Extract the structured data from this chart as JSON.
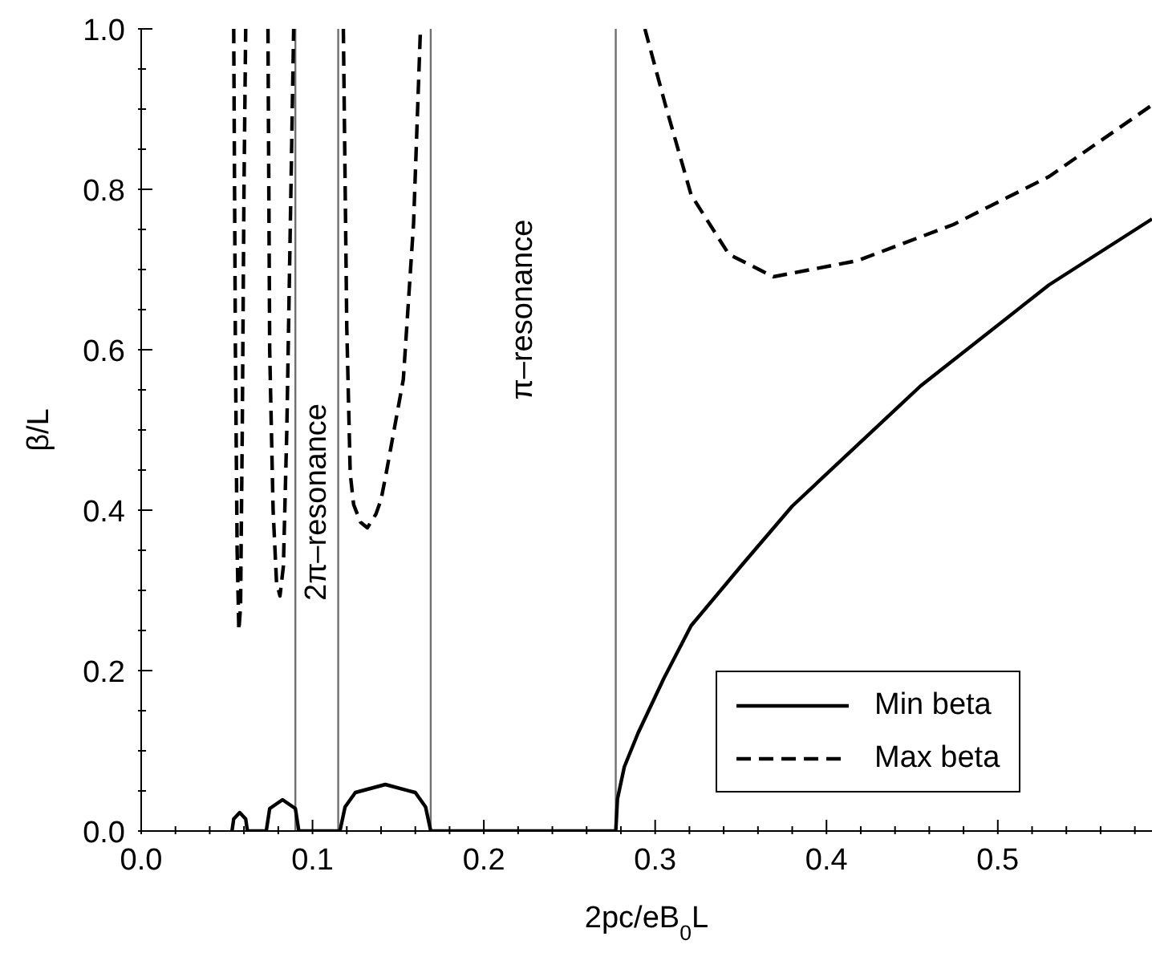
{
  "chart_data": {
    "type": "line",
    "xlabel": "2pc/eB$_{0}$L",
    "ylabel": "β/L",
    "xlim": [
      0,
      0.59
    ],
    "ylim": [
      0,
      1
    ],
    "xticks": [
      {
        "value": 0,
        "label": "0.0"
      },
      {
        "value": 0.02,
        "label": null
      },
      {
        "value": 0.04,
        "label": null
      },
      {
        "value": 0.06,
        "label": null
      },
      {
        "value": 0.08,
        "label": null
      },
      0.1,
      {
        "value": 0.12,
        "label": null
      },
      {
        "value": 0.14,
        "label": null
      },
      {
        "value": 0.16,
        "label": null
      },
      {
        "value": 0.18,
        "label": null
      },
      0.2,
      {
        "value": 0.22,
        "label": null
      },
      {
        "value": 0.24,
        "label": null
      },
      {
        "value": 0.26,
        "label": null
      },
      {
        "value": 0.28,
        "label": null
      },
      0.3,
      {
        "value": 0.32,
        "label": null
      },
      {
        "value": 0.34,
        "label": null
      },
      {
        "value": 0.36,
        "label": null
      },
      {
        "value": 0.38,
        "label": null
      },
      0.4,
      {
        "value": 0.42,
        "label": null
      },
      {
        "value": 0.44,
        "label": null
      },
      {
        "value": 0.46,
        "label": null
      },
      {
        "value": 0.48,
        "label": null
      },
      0.5,
      {
        "value": 0.52,
        "label": null
      },
      {
        "value": 0.54,
        "label": null
      },
      {
        "value": 0.56,
        "label": null
      },
      {
        "value": 0.58,
        "label": null
      }
    ],
    "yticks": [
      {
        "value": 0,
        "label": "0.0"
      },
      {
        "value": 0.05,
        "label": null
      },
      {
        "value": 0.1,
        "label": null
      },
      {
        "value": 0.15,
        "label": null
      },
      0.2,
      {
        "value": 0.25,
        "label": null
      },
      {
        "value": 0.3,
        "label": null
      },
      {
        "value": 0.35,
        "label": null
      },
      0.4,
      {
        "value": 0.45,
        "label": null
      },
      {
        "value": 0.5,
        "label": null
      },
      {
        "value": 0.55,
        "label": null
      },
      0.6,
      {
        "value": 0.65,
        "label": null
      },
      {
        "value": 0.7,
        "label": null
      },
      {
        "value": 0.75,
        "label": null
      },
      0.8,
      {
        "value": 0.85,
        "label": null
      },
      {
        "value": 0.9,
        "label": null
      },
      {
        "value": 0.95,
        "label": null
      },
      {
        "value": 1,
        "label": "1.0"
      }
    ],
    "series": [
      {
        "name": "Min beta",
        "color": "#000000",
        "line_style": "solid",
        "x": [
          0.053,
          0.054,
          0.0575,
          0.061,
          0.062,
          0.073,
          0.075,
          0.0825,
          0.09,
          0.092,
          0.116,
          0.119,
          0.125,
          0.1425,
          0.16,
          0.166,
          0.169,
          0.277,
          0.278,
          0.282,
          0.29,
          0.305,
          0.321,
          0.35,
          0.38,
          0.455,
          0.53,
          0.59
        ],
        "values": [
          0,
          0.015,
          0.023,
          0.015,
          0,
          0,
          0.028,
          0.039,
          0.028,
          0,
          0,
          0.03,
          0.048,
          0.058,
          0.048,
          0.03,
          0,
          0,
          0.04,
          0.08,
          0.122,
          0.19,
          0.256,
          0.33,
          0.405,
          0.555,
          0.681,
          0.763
        ]
      },
      {
        "name": "Max beta",
        "color": "#000000",
        "line_style": "dashed",
        "x": [
          0.054,
          0.055,
          0.056,
          0.057,
          0.058,
          0.059,
          0.06,
          0.061,
          0.0615,
          0.074,
          0.075,
          0.077,
          0.079,
          0.081,
          0.083,
          0.085,
          0.087,
          0.089,
          0.0895,
          0.118,
          0.12,
          0.122,
          0.124,
          0.128,
          0.132,
          0.137,
          0.14,
          0.143,
          0.153,
          0.159,
          0.163,
          0.1635,
          0.294,
          0.306,
          0.321,
          0.343,
          0.369,
          0.418,
          0.474,
          0.53,
          0.59
        ],
        "values": [
          1,
          0.6,
          0.35,
          0.25,
          0.28,
          0.5,
          0.8,
          1,
          null,
          1,
          0.6,
          0.4,
          0.31,
          0.293,
          0.33,
          0.5,
          0.75,
          1,
          null,
          1,
          0.628,
          0.446,
          0.407,
          0.385,
          0.378,
          0.395,
          0.413,
          0.446,
          0.563,
          0.758,
          1,
          null,
          1,
          0.905,
          0.793,
          0.719,
          0.691,
          0.711,
          0.756,
          0.816,
          0.905
        ]
      }
    ],
    "ref_lines": [
      {
        "axis": "x",
        "value": 0.09,
        "color": "#707070"
      },
      {
        "axis": "x",
        "value": 0.115,
        "color": "#707070"
      },
      {
        "axis": "x",
        "value": 0.169,
        "color": "#707070"
      },
      {
        "axis": "x",
        "value": 0.277,
        "color": "#707070"
      }
    ],
    "annotations": [
      "2π–resonance",
      "π–resonance"
    ],
    "legend": "bottom right",
    "grid": false,
    "marker": "none"
  }
}
